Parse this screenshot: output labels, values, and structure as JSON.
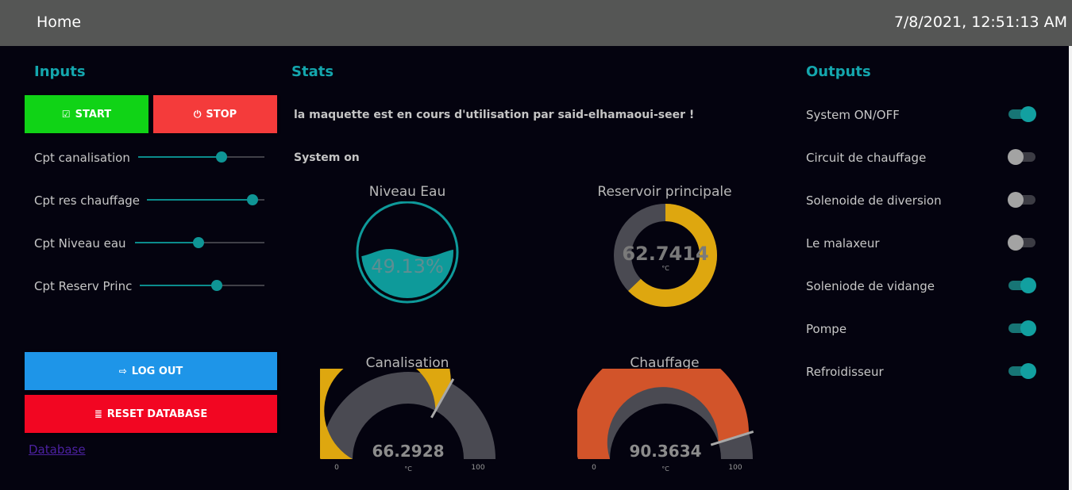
{
  "header": {
    "home_label": "Home",
    "datetime": "7/8/2021, 12:51:13 AM"
  },
  "inputs": {
    "title": "Inputs",
    "start_label": "START",
    "stop_label": "STOP",
    "sliders": [
      {
        "label": "Cpt canalisation",
        "value": 66
      },
      {
        "label": "Cpt res chauffage",
        "value": 90
      },
      {
        "label": "Cpt Niveau eau",
        "value": 49
      },
      {
        "label": "Cpt Reserv Princ",
        "value": 62
      }
    ],
    "logout_label": "LOG OUT",
    "reset_label": "RESET DATABASE",
    "database_link": "Database"
  },
  "stats": {
    "title": "Stats",
    "message": "la maquette est en cours d'utilisation par said-elhamaoui-seer !",
    "status": "System on",
    "niveau_eau": {
      "title": "Niveau Eau",
      "value_text": "49.13%",
      "value": 49.13
    },
    "reservoir": {
      "title": "Reservoir principale",
      "value_text": "62.7414",
      "unit": "°C",
      "value": 62.7414,
      "min": 0,
      "max": 100
    },
    "canalisation": {
      "title": "Canalisation",
      "value_text": "66.2928",
      "unit": "°C",
      "min_label": "0",
      "max_label": "100",
      "value": 66.2928
    },
    "chauffage": {
      "title": "Chauffage",
      "value_text": "90.3634",
      "unit": "°C",
      "min_label": "0",
      "max_label": "100",
      "value": 90.3634
    }
  },
  "outputs": {
    "title": "Outputs",
    "items": [
      {
        "label": "System ON/OFF",
        "on": true
      },
      {
        "label": "Circuit de chauffage",
        "on": false
      },
      {
        "label": "Solenoide de diversion",
        "on": false
      },
      {
        "label": "Le malaxeur",
        "on": false
      },
      {
        "label": "Soleniode de vidange",
        "on": true
      },
      {
        "label": "Pompe",
        "on": true
      },
      {
        "label": "Refroidisseur",
        "on": true
      }
    ]
  },
  "colors": {
    "accent": "#14a6ad",
    "start": "#10d316",
    "stop": "#f43b3b",
    "logout": "#1e95e8",
    "reset": "#f20622",
    "gauge_yellow": "#dea70f",
    "gauge_orange": "#d2542a",
    "gauge_track": "#4a4a52",
    "water": "#0e9a9a"
  }
}
